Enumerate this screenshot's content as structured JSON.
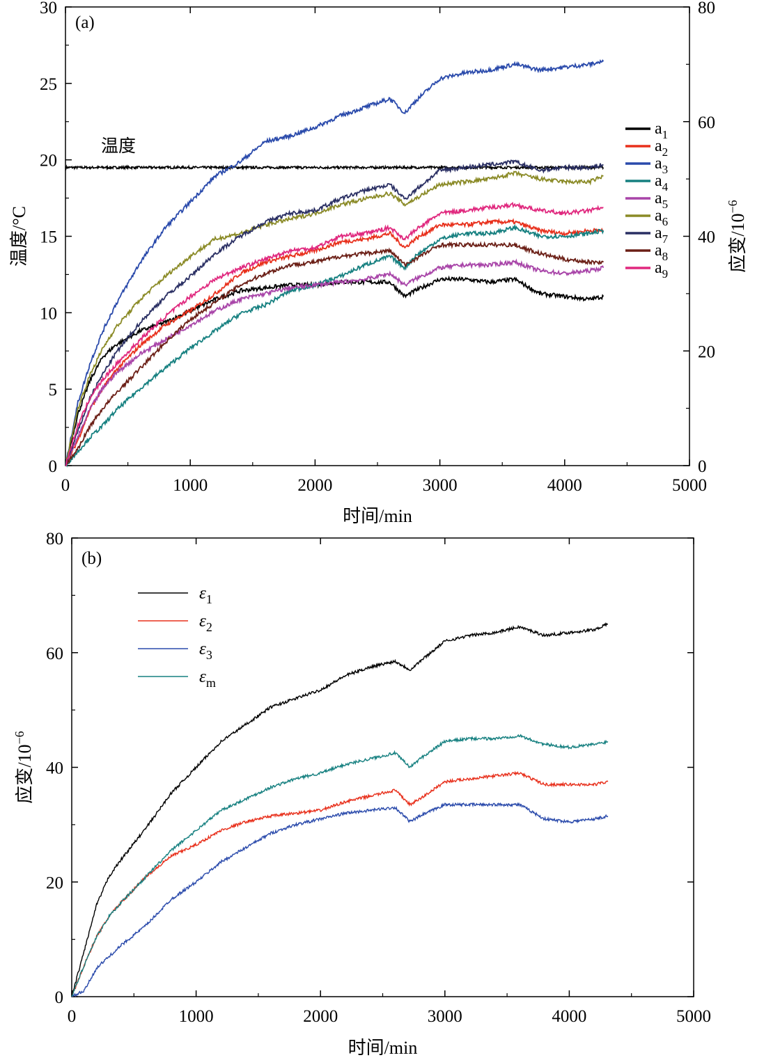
{
  "chart_data": [
    {
      "type": "line",
      "panel_label": "(a)",
      "annotation": "温度",
      "xlabel": "时间/min",
      "ylabel_left": "温度/°C",
      "ylabel_right": "应变/10",
      "ylabel_right_sup": "−6",
      "xlim": [
        0,
        5000
      ],
      "ylim_left": [
        0,
        30
      ],
      "ylim_right": [
        0,
        80
      ],
      "xticks": [
        0,
        1000,
        2000,
        3000,
        4000,
        5000
      ],
      "yticks_left": [
        0,
        5,
        10,
        15,
        20,
        25,
        30
      ],
      "yticks_right": [
        0,
        20,
        40,
        60,
        80
      ],
      "legend_position": "right",
      "x": [
        0,
        100,
        200,
        300,
        400,
        600,
        800,
        1000,
        1200,
        1400,
        1600,
        1800,
        2000,
        2200,
        2400,
        2600,
        2720,
        2800,
        3000,
        3200,
        3400,
        3600,
        3800,
        4000,
        4200,
        4310
      ],
      "temperature": {
        "name": "温度",
        "color": "#000000",
        "value": 19.5
      },
      "series": [
        {
          "name": "a",
          "sub": "1",
          "color": "#000000",
          "values": [
            0,
            9,
            15,
            19,
            21,
            23.5,
            25,
            27,
            29,
            30.5,
            31,
            31.5,
            31.5,
            32,
            32,
            32,
            29.5,
            30.5,
            32.5,
            32.5,
            32,
            32.5,
            30,
            29.5,
            29,
            29.5
          ]
        },
        {
          "name": "a",
          "sub": "2",
          "color": "#e8301c",
          "values": [
            0,
            4.5,
            10,
            13.5,
            16.5,
            21,
            24.5,
            27,
            30,
            33.5,
            35.5,
            36.5,
            37.5,
            39,
            39.5,
            40.5,
            38,
            39.5,
            42,
            42,
            42.5,
            42.5,
            41,
            40.5,
            41,
            41
          ]
        },
        {
          "name": "a",
          "sub": "3",
          "color": "#2a4aab",
          "values": [
            0,
            11,
            18,
            23.5,
            28,
            35.5,
            41.5,
            46,
            50.5,
            53,
            56.5,
            57.5,
            59,
            61,
            62.5,
            64,
            61.5,
            63.5,
            67.5,
            68.5,
            69,
            70,
            69,
            69.5,
            70,
            70.5
          ]
        },
        {
          "name": "a",
          "sub": "4",
          "color": "#168080",
          "values": [
            0,
            2.5,
            5,
            7,
            9.5,
            13.5,
            17,
            20.5,
            23.5,
            26.5,
            28,
            30.5,
            31.5,
            33,
            35,
            36.5,
            34.5,
            36.5,
            39.5,
            40.5,
            40.5,
            41.5,
            40,
            40,
            40.5,
            41
          ]
        },
        {
          "name": "a",
          "sub": "5",
          "color": "#a844a8",
          "values": [
            0,
            5,
            10,
            13.5,
            16,
            19.5,
            22,
            24.5,
            27,
            29,
            30,
            31,
            31.5,
            32,
            32.5,
            33.5,
            31.5,
            32.5,
            34.5,
            35,
            35,
            35.5,
            34,
            33.5,
            34,
            34.5
          ]
        },
        {
          "name": "a",
          "sub": "6",
          "color": "#8a8a26",
          "values": [
            0,
            10,
            16,
            20.5,
            24,
            29,
            33,
            36.5,
            39.5,
            40.5,
            42,
            43,
            44,
            45.5,
            46.5,
            47.5,
            45.5,
            46.5,
            49,
            49.5,
            50,
            51,
            50,
            49.5,
            49.5,
            50.5
          ]
        },
        {
          "name": "a",
          "sub": "7",
          "color": "#2a2f63",
          "values": [
            0,
            6,
            12,
            16,
            19.5,
            25,
            29.5,
            33,
            37,
            40,
            42.5,
            44,
            44.5,
            46.5,
            48,
            49,
            46.5,
            48,
            51.5,
            52,
            52.5,
            53,
            51.5,
            52,
            52,
            52.5
          ]
        },
        {
          "name": "a",
          "sub": "8",
          "color": "#6b1f16",
          "values": [
            0,
            3,
            7,
            10,
            12.5,
            17,
            21.5,
            25.5,
            28.5,
            31.5,
            33.5,
            35,
            35.5,
            36.5,
            37,
            37.5,
            35,
            36,
            38.5,
            38.5,
            38.5,
            38.5,
            37,
            36,
            35.5,
            35.5
          ]
        },
        {
          "name": "a",
          "sub": "9",
          "color": "#e0287e",
          "values": [
            0,
            7,
            12,
            15,
            17.5,
            22,
            26,
            29.5,
            32.5,
            34.5,
            36,
            37.5,
            38,
            40,
            40.5,
            41.5,
            39.5,
            41,
            44,
            44.5,
            45,
            45.5,
            44.5,
            44,
            44.5,
            45
          ]
        }
      ]
    },
    {
      "type": "line",
      "panel_label": "(b)",
      "xlabel": "时间/min",
      "ylabel": "应变/10",
      "ylabel_sup": "−6",
      "xlim": [
        0,
        5000
      ],
      "ylim": [
        0,
        80
      ],
      "xticks": [
        0,
        1000,
        2000,
        3000,
        4000,
        5000
      ],
      "yticks": [
        0,
        20,
        40,
        60,
        80
      ],
      "legend_position": "top-left",
      "x": [
        0,
        100,
        200,
        300,
        400,
        600,
        800,
        1000,
        1200,
        1400,
        1600,
        1800,
        2000,
        2200,
        2400,
        2600,
        2720,
        2800,
        3000,
        3200,
        3400,
        3600,
        3800,
        4000,
        4200,
        4310
      ],
      "series": [
        {
          "name": "ε",
          "sub": "1",
          "color": "#000000",
          "values": [
            0,
            8,
            16,
            21,
            24,
            29.5,
            35.5,
            40,
            44.5,
            47.5,
            50.5,
            52,
            53.5,
            56,
            57.5,
            58.5,
            57,
            58.5,
            62,
            63,
            63.5,
            64.5,
            63,
            63.5,
            64,
            65
          ]
        },
        {
          "name": "ε",
          "sub": "2",
          "color": "#e8301c",
          "values": [
            0,
            5.5,
            10.5,
            14,
            16.5,
            21,
            24.5,
            26.5,
            29,
            30.5,
            31.5,
            32,
            32.5,
            34,
            35,
            36,
            33.5,
            34.5,
            37.5,
            38,
            38.5,
            39,
            37,
            37,
            37,
            37.5
          ]
        },
        {
          "name": "ε",
          "sub": "3",
          "color": "#2a4aab",
          "values": [
            0,
            1,
            5,
            7,
            9,
            12.5,
            17,
            20,
            23.5,
            26,
            28.5,
            30,
            31,
            32,
            32.5,
            33,
            30.5,
            31.5,
            33.5,
            33.5,
            33.5,
            33.5,
            31,
            30.5,
            31,
            31.5
          ]
        },
        {
          "name": "ε",
          "sub": "m",
          "color": "#168080",
          "values": [
            0,
            5.5,
            10.5,
            14,
            16.5,
            21,
            25.5,
            29,
            32.5,
            34.5,
            36.5,
            38,
            39,
            40.5,
            41.5,
            42.5,
            40,
            41.5,
            44.5,
            45,
            45,
            45.5,
            44,
            43.5,
            44,
            44.5
          ]
        }
      ]
    }
  ]
}
